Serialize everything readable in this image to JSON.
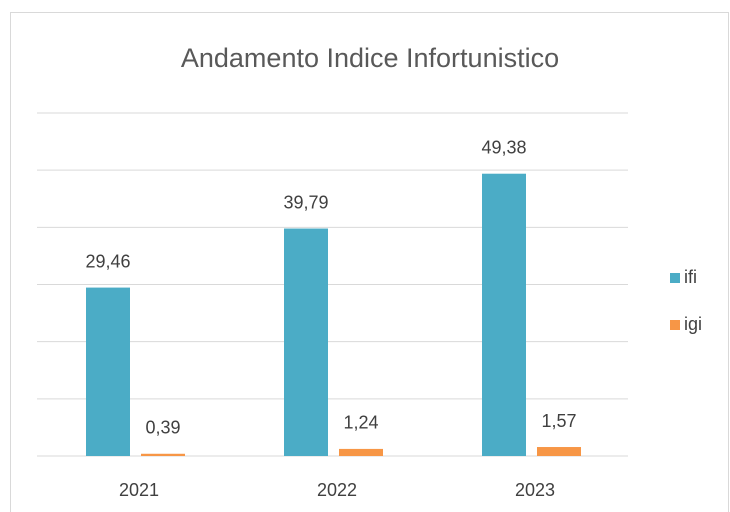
{
  "chart_data": {
    "type": "bar",
    "title": "Andamento Indice Infortunistico",
    "categories": [
      "2021",
      "2022",
      "2023"
    ],
    "series": [
      {
        "name": "ifi",
        "color": "#4bacc6",
        "values": [
          29.46,
          39.79,
          49.38
        ],
        "value_labels": [
          "29,46",
          "39,79",
          "49,38"
        ]
      },
      {
        "name": "igi",
        "color": "#f79646",
        "values": [
          0.39,
          1.24,
          1.57
        ],
        "value_labels": [
          "0,39",
          "1,24",
          "1,57"
        ]
      }
    ],
    "ylim": [
      0,
      60
    ],
    "yticks": [
      0,
      10,
      20,
      30,
      40,
      50,
      60
    ],
    "grid": true,
    "legend": "right"
  }
}
